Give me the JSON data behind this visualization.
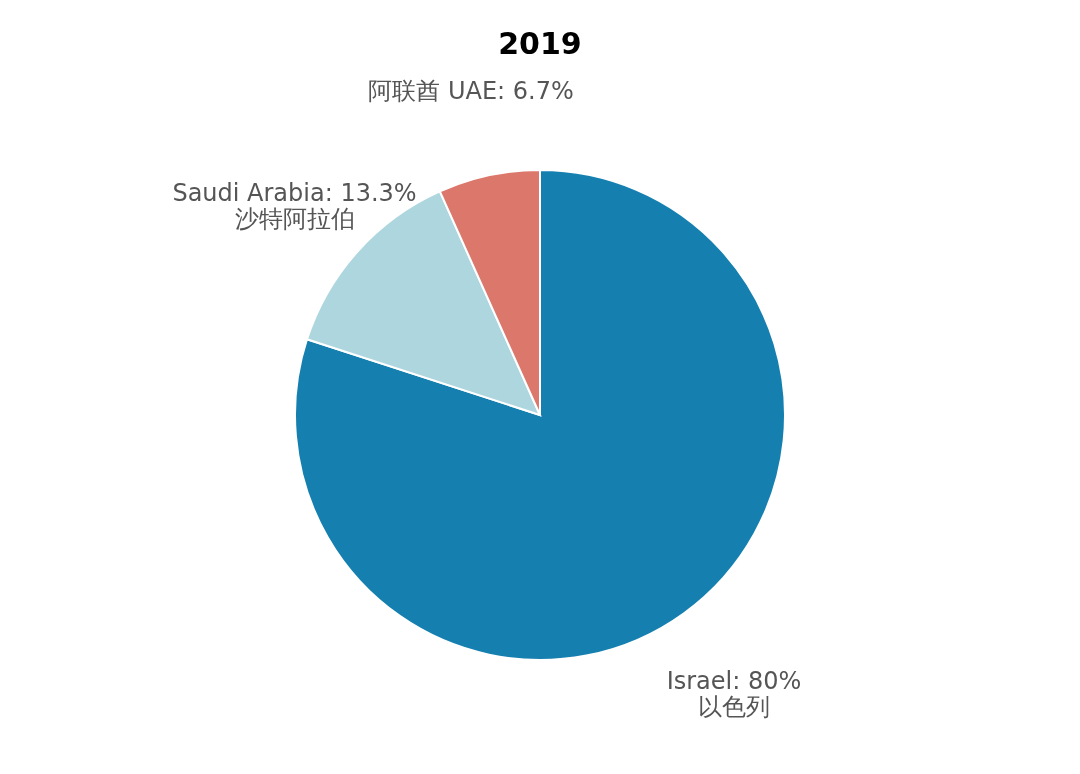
{
  "chart_data": {
    "type": "pie",
    "title": "2019",
    "categories": [
      "Israel: 80%\n以色列",
      "Saudi Arabia: 13.3%\n沙特阿拉伯",
      "阿联酋 UAE: 6.7%"
    ],
    "values": [
      80,
      13.3,
      6.7
    ],
    "colors": [
      "#1580b0",
      "#aed6df",
      "#dc776c"
    ],
    "legend": false
  }
}
